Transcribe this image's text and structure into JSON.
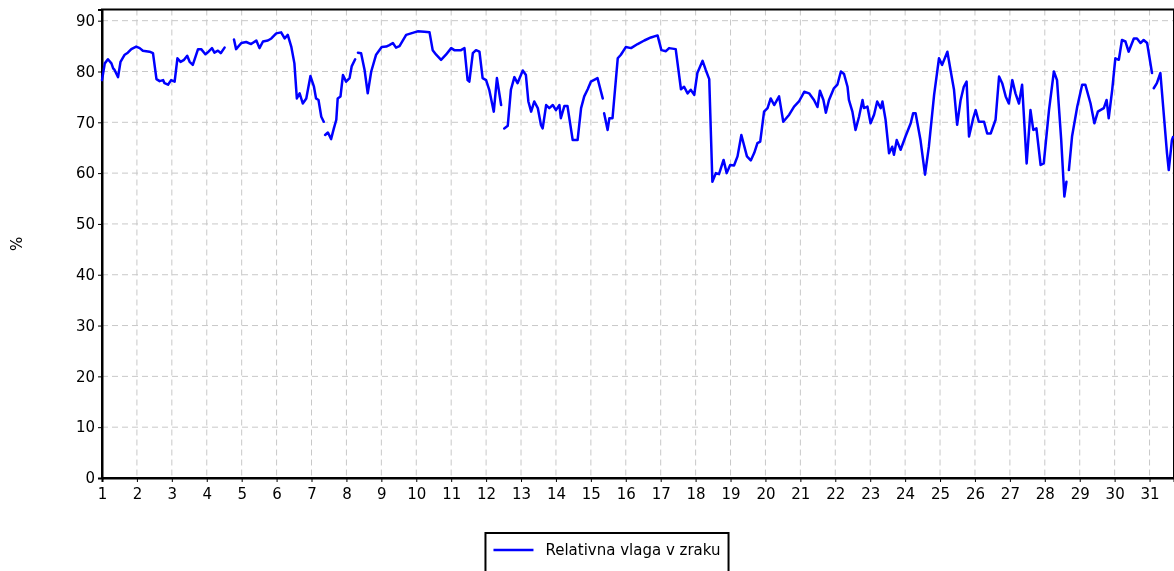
{
  "chart_data": {
    "type": "line",
    "ylabel": "%",
    "xlim": [
      1,
      31.7
    ],
    "ylim": [
      0,
      92.2
    ],
    "xticks": [
      1,
      2,
      3,
      4,
      5,
      6,
      7,
      8,
      9,
      10,
      11,
      12,
      13,
      14,
      15,
      16,
      17,
      18,
      19,
      20,
      21,
      22,
      23,
      24,
      25,
      26,
      27,
      28,
      29,
      30,
      31
    ],
    "yticks": [
      0,
      10,
      20,
      30,
      40,
      50,
      60,
      70,
      80,
      90
    ],
    "grid": true,
    "legend": "bottom",
    "marker": "none",
    "line_style": "solid",
    "series": [
      {
        "name": "Relativna vlaga v zraku",
        "color": "#0000ff",
        "x": [
          1.0,
          1.08,
          1.17,
          1.27,
          1.32,
          1.36,
          1.46,
          1.53,
          1.65,
          1.74,
          1.84,
          1.98,
          2.08,
          2.17,
          2.36,
          2.46,
          2.56,
          2.65,
          2.75,
          2.79,
          2.89,
          2.98,
          3.08,
          3.16,
          3.25,
          3.35,
          3.44,
          3.51,
          3.6,
          3.75,
          3.84,
          3.96,
          4.05,
          4.15,
          4.22,
          4.32,
          4.4,
          4.51,
          4.65,
          4.78,
          4.84,
          4.99,
          5.13,
          5.27,
          5.42,
          5.51,
          5.61,
          5.75,
          5.85,
          5.99,
          6.13,
          6.23,
          6.32,
          6.42,
          6.51,
          6.58,
          6.66,
          6.75,
          6.85,
          6.97,
          7.07,
          7.13,
          7.2,
          7.28,
          7.35,
          7.37,
          7.39,
          7.47,
          7.56,
          7.64,
          7.71,
          7.75,
          7.83,
          7.9,
          7.99,
          8.09,
          8.15,
          8.25,
          8.29,
          8.33,
          8.42,
          8.52,
          8.61,
          8.71,
          8.85,
          9.01,
          9.14,
          9.23,
          9.33,
          9.42,
          9.52,
          9.71,
          9.85,
          10.04,
          10.23,
          10.38,
          10.47,
          10.57,
          10.71,
          10.85,
          11.0,
          11.09,
          11.28,
          11.38,
          11.47,
          11.52,
          11.62,
          11.71,
          11.81,
          11.9,
          12.0,
          12.09,
          12.22,
          12.31,
          12.43,
          12.47,
          12.52,
          12.62,
          12.71,
          12.81,
          12.9,
          13.05,
          13.14,
          13.21,
          13.29,
          13.38,
          13.48,
          13.57,
          13.62,
          13.72,
          13.81,
          13.91,
          14.0,
          14.1,
          14.14,
          14.24,
          14.33,
          14.48,
          14.62,
          14.72,
          14.81,
          14.91,
          15.0,
          15.19,
          15.34,
          15.36,
          15.38,
          15.48,
          15.53,
          15.62,
          15.77,
          15.86,
          16.0,
          16.15,
          16.34,
          16.53,
          16.72,
          16.91,
          17.02,
          17.15,
          17.24,
          17.43,
          17.58,
          17.67,
          17.77,
          17.86,
          17.96,
          18.05,
          18.2,
          18.29,
          18.39,
          18.48,
          18.58,
          18.67,
          18.8,
          18.89,
          18.99,
          19.1,
          19.2,
          19.31,
          19.47,
          19.58,
          19.68,
          19.77,
          19.85,
          19.96,
          20.06,
          20.15,
          20.25,
          20.39,
          20.51,
          20.68,
          20.82,
          20.96,
          21.11,
          21.25,
          21.39,
          21.49,
          21.56,
          21.66,
          21.73,
          21.82,
          21.96,
          22.06,
          22.16,
          22.25,
          22.35,
          22.39,
          22.49,
          22.58,
          22.68,
          22.78,
          22.82,
          22.92,
          23.01,
          23.11,
          23.2,
          23.3,
          23.35,
          23.44,
          23.54,
          23.63,
          23.68,
          23.76,
          23.87,
          24.01,
          24.16,
          24.23,
          24.3,
          24.44,
          24.57,
          24.68,
          24.83,
          24.97,
          25.06,
          25.21,
          25.3,
          25.4,
          25.49,
          25.59,
          25.68,
          25.76,
          25.83,
          25.95,
          26.02,
          26.11,
          26.26,
          26.35,
          26.45,
          26.59,
          26.69,
          26.78,
          26.88,
          26.97,
          27.07,
          27.16,
          27.26,
          27.35,
          27.48,
          27.59,
          27.67,
          27.76,
          27.88,
          27.97,
          28.12,
          28.26,
          28.35,
          28.47,
          28.56,
          28.62,
          28.65,
          28.69,
          28.78,
          28.93,
          29.07,
          29.16,
          29.31,
          29.42,
          29.52,
          29.59,
          29.69,
          29.77,
          29.83,
          29.93,
          30.02,
          30.12,
          30.21,
          30.31,
          30.4,
          30.55,
          30.64,
          30.74,
          30.83,
          30.93,
          31.07,
          31.09,
          31.12,
          31.21,
          31.31,
          31.5,
          31.55,
          31.64,
          31.67
        ],
        "values": [
          78.3,
          81.6,
          82.4,
          81.6,
          80.6,
          80.3,
          78.9,
          81.9,
          83.3,
          83.7,
          84.4,
          84.9,
          84.6,
          84.1,
          83.9,
          83.6,
          78.5,
          78.1,
          78.3,
          77.7,
          77.4,
          78.3,
          78.0,
          82.6,
          81.9,
          82.3,
          83.1,
          81.9,
          81.3,
          84.4,
          84.4,
          83.4,
          83.9,
          84.6,
          83.7,
          84.1,
          83.6,
          84.7,
          null,
          86.3,
          84.4,
          85.6,
          85.8,
          85.4,
          86.1,
          84.6,
          85.9,
          86.1,
          86.5,
          87.5,
          87.7,
          86.5,
          87.2,
          84.9,
          81.6,
          74.7,
          75.7,
          73.7,
          74.7,
          79.1,
          77.0,
          74.7,
          74.4,
          71.1,
          70.1,
          null,
          67.5,
          68.0,
          66.7,
          68.8,
          70.5,
          74.7,
          75.1,
          79.3,
          78.0,
          78.7,
          81.0,
          82.4,
          null,
          83.7,
          83.6,
          80.3,
          75.7,
          80.0,
          83.3,
          84.8,
          84.9,
          85.2,
          85.6,
          84.7,
          85.0,
          87.2,
          87.5,
          87.9,
          87.8,
          87.7,
          84.2,
          83.3,
          82.3,
          83.3,
          84.6,
          84.2,
          84.2,
          84.6,
          78.3,
          78.0,
          83.6,
          84.2,
          83.9,
          78.7,
          78.3,
          76.4,
          72.1,
          78.7,
          73.4,
          null,
          68.8,
          69.3,
          76.4,
          78.9,
          77.7,
          80.2,
          79.3,
          74.1,
          72.1,
          74.1,
          72.8,
          69.5,
          68.8,
          73.4,
          72.8,
          73.4,
          72.4,
          73.4,
          70.8,
          73.2,
          73.2,
          66.5,
          66.5,
          72.8,
          75.1,
          76.5,
          78.0,
          78.7,
          74.7,
          null,
          71.8,
          68.5,
          70.8,
          70.8,
          82.6,
          83.3,
          84.8,
          84.6,
          85.4,
          86.1,
          86.7,
          87.1,
          84.2,
          84.0,
          84.6,
          84.4,
          76.5,
          77.0,
          75.7,
          76.4,
          75.4,
          79.7,
          82.1,
          80.3,
          78.5,
          58.3,
          60.0,
          59.8,
          62.6,
          60.0,
          61.6,
          61.5,
          63.3,
          67.5,
          63.3,
          62.5,
          64.0,
          65.9,
          66.2,
          72.1,
          72.8,
          74.7,
          73.4,
          75.1,
          70.1,
          71.5,
          73.1,
          74.1,
          76.0,
          75.7,
          74.4,
          73.0,
          76.2,
          74.4,
          71.9,
          74.4,
          76.7,
          77.4,
          80.0,
          79.5,
          77.0,
          74.4,
          72.1,
          68.5,
          71.1,
          74.4,
          72.8,
          73.1,
          69.8,
          71.5,
          74.1,
          72.8,
          74.1,
          70.5,
          63.9,
          65.2,
          63.6,
          66.5,
          64.6,
          67.2,
          69.8,
          71.8,
          71.8,
          66.5,
          59.7,
          65.2,
          75.4,
          82.6,
          81.3,
          83.9,
          80.3,
          76.4,
          69.5,
          74.4,
          77.0,
          78.0,
          67.2,
          70.8,
          72.4,
          70.1,
          70.1,
          67.8,
          67.8,
          70.5,
          79.0,
          77.7,
          75.1,
          73.7,
          78.3,
          75.7,
          73.7,
          77.4,
          61.9,
          72.4,
          68.5,
          68.8,
          61.6,
          61.9,
          72.4,
          80.0,
          78.3,
          66.5,
          55.4,
          58.3,
          null,
          60.6,
          67.2,
          73.1,
          77.4,
          77.4,
          73.7,
          69.8,
          72.1,
          72.4,
          72.8,
          74.4,
          70.8,
          76.4,
          82.6,
          82.3,
          86.2,
          85.9,
          83.9,
          86.5,
          86.5,
          85.6,
          86.2,
          85.6,
          79.7,
          null,
          76.7,
          77.7,
          79.7,
          63.9,
          60.6,
          66.5,
          67.1
        ]
      }
    ]
  }
}
